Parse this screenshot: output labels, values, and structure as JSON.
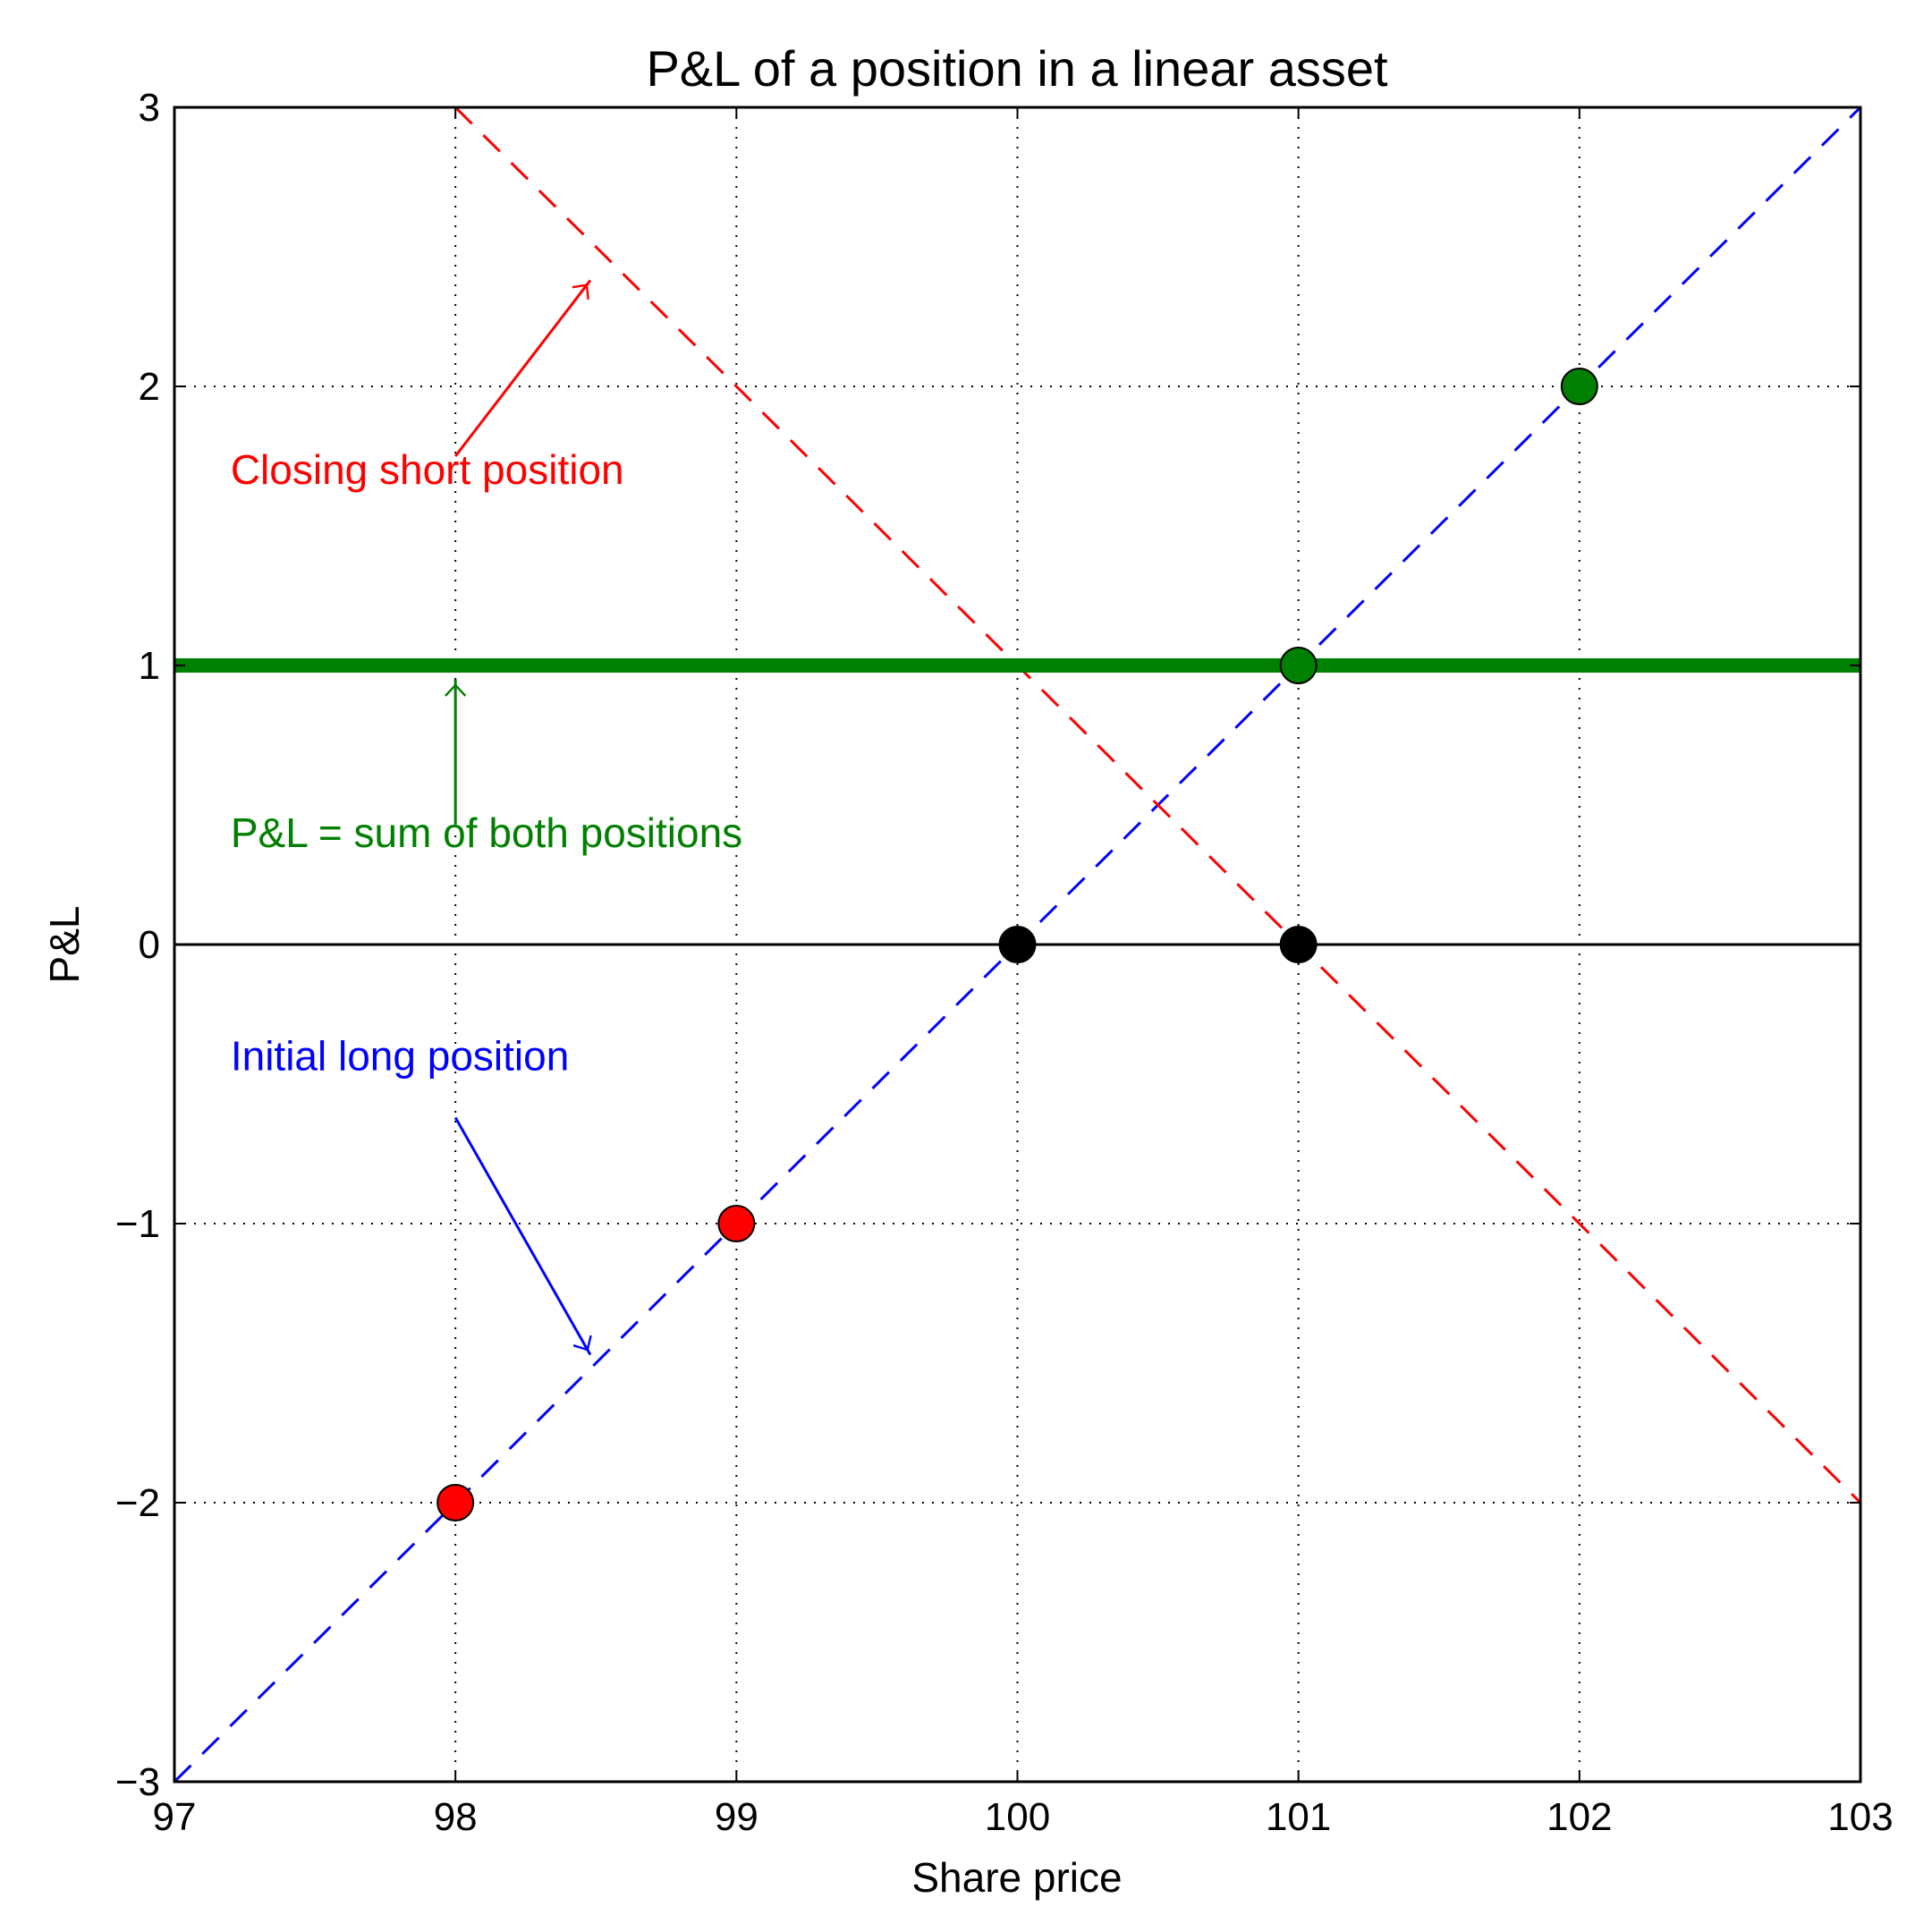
{
  "chart_data": {
    "type": "line",
    "title": "P&L of a position in a linear asset",
    "xlabel": "Share price",
    "ylabel": "P&L",
    "xlim": [
      97,
      103
    ],
    "ylim": [
      -3,
      3
    ],
    "x_ticks": [
      97,
      98,
      99,
      100,
      101,
      102,
      103
    ],
    "y_ticks": [
      -3,
      -2,
      -1,
      0,
      1,
      2,
      3
    ],
    "y_tick_labels": [
      "−3",
      "−2",
      "−1",
      "0",
      "1",
      "2",
      "3"
    ],
    "grid": true,
    "series": [
      {
        "style": "dashed",
        "color": "#0000ff",
        "x": [
          97,
          103
        ],
        "y": [
          -3,
          3
        ]
      },
      {
        "style": "dashed",
        "color": "#ff0000",
        "x": [
          98,
          103
        ],
        "y": [
          3,
          -2
        ]
      },
      {
        "style": "solid",
        "color": "#008000",
        "x": [
          97,
          103
        ],
        "y": [
          1,
          1
        ]
      },
      {
        "style": "solid",
        "color": "#000000",
        "x": [
          97,
          103
        ],
        "y": [
          0,
          0
        ]
      }
    ],
    "points": [
      {
        "x": 98,
        "y": -2,
        "color": "#ff0000"
      },
      {
        "x": 99,
        "y": -1,
        "color": "#ff0000"
      },
      {
        "x": 100,
        "y": 0,
        "color": "#000000"
      },
      {
        "x": 101,
        "y": 0,
        "color": "#000000"
      },
      {
        "x": 101,
        "y": 1,
        "color": "#008000"
      },
      {
        "x": 102,
        "y": 2,
        "color": "#008000"
      }
    ],
    "annotations": [
      {
        "text": "Closing short position",
        "color": "#ff0000",
        "text_x": 97.2,
        "text_y": 1.65,
        "arrow_from": [
          98.0,
          1.75
        ],
        "arrow_to": [
          98.48,
          2.38
        ]
      },
      {
        "text": "P&L = sum of both positions",
        "color": "#008000",
        "text_x": 97.2,
        "text_y": 0.35,
        "arrow_from": [
          98.0,
          0.43
        ],
        "arrow_to": [
          98.0,
          0.95
        ]
      },
      {
        "text": "Initial long position",
        "color": "#0000ff",
        "text_x": 97.2,
        "text_y": -0.45,
        "arrow_from": [
          98.0,
          -0.62
        ],
        "arrow_to": [
          98.48,
          -1.47
        ]
      }
    ]
  }
}
